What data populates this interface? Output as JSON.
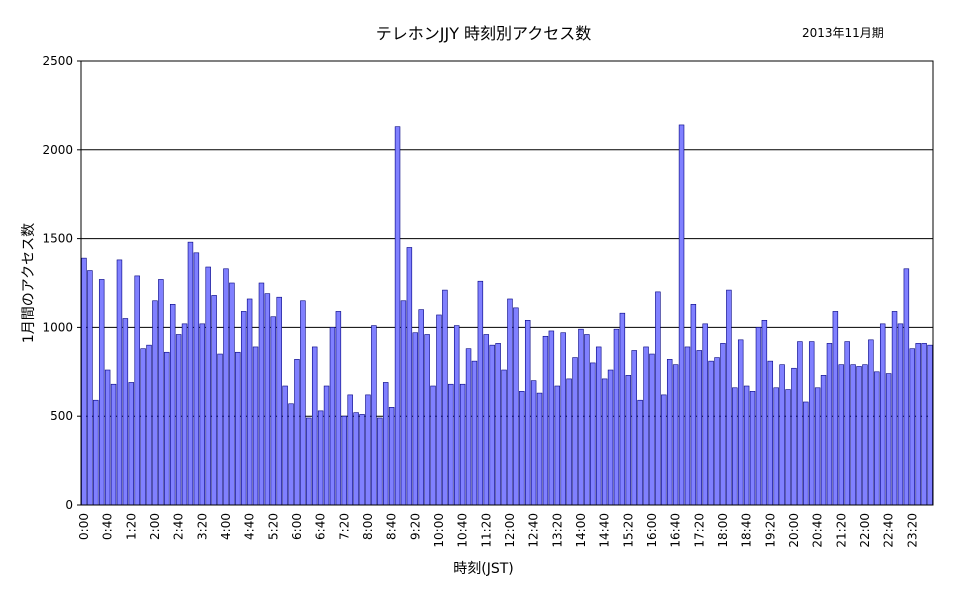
{
  "chart_data": {
    "type": "bar",
    "title": "テレホンJJY  時刻別アクセス数",
    "period": "2013年11月期",
    "xlabel": "時刻(JST)",
    "ylabel": "1月間のアクセス数",
    "ylim": [
      0,
      2500
    ],
    "yticks": [
      0,
      500,
      1000,
      1500,
      2000,
      2500
    ],
    "grid": true,
    "bar_color": "#8080ff",
    "bar_edge": "#000080",
    "categories": [
      "0:00",
      "0:10",
      "0:20",
      "0:30",
      "0:40",
      "0:50",
      "1:00",
      "1:10",
      "1:20",
      "1:30",
      "1:40",
      "1:50",
      "2:00",
      "2:10",
      "2:20",
      "2:30",
      "2:40",
      "2:50",
      "3:00",
      "3:10",
      "3:20",
      "3:30",
      "3:40",
      "3:50",
      "4:00",
      "4:10",
      "4:20",
      "4:30",
      "4:40",
      "4:50",
      "5:00",
      "5:10",
      "5:20",
      "5:30",
      "5:40",
      "5:50",
      "6:00",
      "6:10",
      "6:20",
      "6:30",
      "6:40",
      "6:50",
      "7:00",
      "7:10",
      "7:20",
      "7:30",
      "7:40",
      "7:50",
      "8:00",
      "8:10",
      "8:20",
      "8:30",
      "8:40",
      "8:50",
      "9:00",
      "9:10",
      "9:20",
      "9:30",
      "9:40",
      "9:50",
      "10:00",
      "10:10",
      "10:20",
      "10:30",
      "10:40",
      "10:50",
      "11:00",
      "11:10",
      "11:20",
      "11:30",
      "11:40",
      "11:50",
      "12:00",
      "12:10",
      "12:20",
      "12:30",
      "12:40",
      "12:50",
      "13:00",
      "13:10",
      "13:20",
      "13:30",
      "13:40",
      "13:50",
      "14:00",
      "14:10",
      "14:20",
      "14:30",
      "14:40",
      "14:50",
      "15:00",
      "15:10",
      "15:20",
      "15:30",
      "15:40",
      "15:50",
      "16:00",
      "16:10",
      "16:20",
      "16:30",
      "16:40",
      "16:50",
      "17:00",
      "17:10",
      "17:20",
      "17:30",
      "17:40",
      "17:50",
      "18:00",
      "18:10",
      "18:20",
      "18:30",
      "18:40",
      "18:50",
      "19:00",
      "19:10",
      "19:20",
      "19:30",
      "19:40",
      "19:50",
      "20:00",
      "20:10",
      "20:20",
      "20:30",
      "20:40",
      "20:50",
      "21:00",
      "21:10",
      "21:20",
      "21:30",
      "21:40",
      "21:50",
      "22:00",
      "22:10",
      "22:20",
      "22:30",
      "22:40",
      "22:50",
      "23:00",
      "23:10",
      "23:20",
      "23:30",
      "23:40",
      "23:50"
    ],
    "tick_labels": [
      "0:00",
      "0:40",
      "1:20",
      "2:00",
      "2:40",
      "3:20",
      "4:00",
      "4:40",
      "5:20",
      "6:00",
      "6:40",
      "7:20",
      "8:00",
      "8:40",
      "9:20",
      "10:00",
      "10:40",
      "11:20",
      "12:00",
      "12:40",
      "13:20",
      "14:00",
      "14:40",
      "15:20",
      "16:00",
      "16:40",
      "17:20",
      "18:00",
      "18:40",
      "19:20",
      "20:00",
      "20:40",
      "21:20",
      "22:00",
      "22:40",
      "23:20"
    ],
    "values": [
      1390,
      1320,
      590,
      1270,
      760,
      680,
      1380,
      1050,
      690,
      1290,
      880,
      900,
      1150,
      1270,
      860,
      1130,
      960,
      1020,
      1480,
      1420,
      1020,
      1340,
      1180,
      850,
      1330,
      1250,
      860,
      1090,
      1160,
      890,
      1250,
      1190,
      1060,
      1170,
      670,
      570,
      820,
      1150,
      490,
      890,
      530,
      670,
      1000,
      1090,
      500,
      620,
      520,
      510,
      620,
      1010,
      490,
      690,
      550,
      2130,
      1150,
      1450,
      970,
      1100,
      960,
      670,
      1070,
      1210,
      680,
      1010,
      680,
      880,
      810,
      1260,
      960,
      900,
      910,
      760,
      1160,
      1110,
      640,
      1040,
      700,
      630,
      950,
      980,
      670,
      970,
      710,
      830,
      990,
      960,
      800,
      890,
      710,
      760,
      990,
      1080,
      730,
      870,
      590,
      890,
      850,
      1200,
      620,
      820,
      790,
      2140,
      890,
      1130,
      870,
      1020,
      810,
      830,
      910,
      1210,
      660,
      930,
      670,
      640,
      1000,
      1040,
      810,
      660,
      790,
      650,
      770,
      920,
      580,
      920,
      660,
      730,
      910,
      1090,
      790,
      920,
      790,
      780,
      790,
      930,
      750,
      1020,
      740,
      1090,
      1020,
      1330,
      880,
      910,
      910,
      900
    ]
  }
}
